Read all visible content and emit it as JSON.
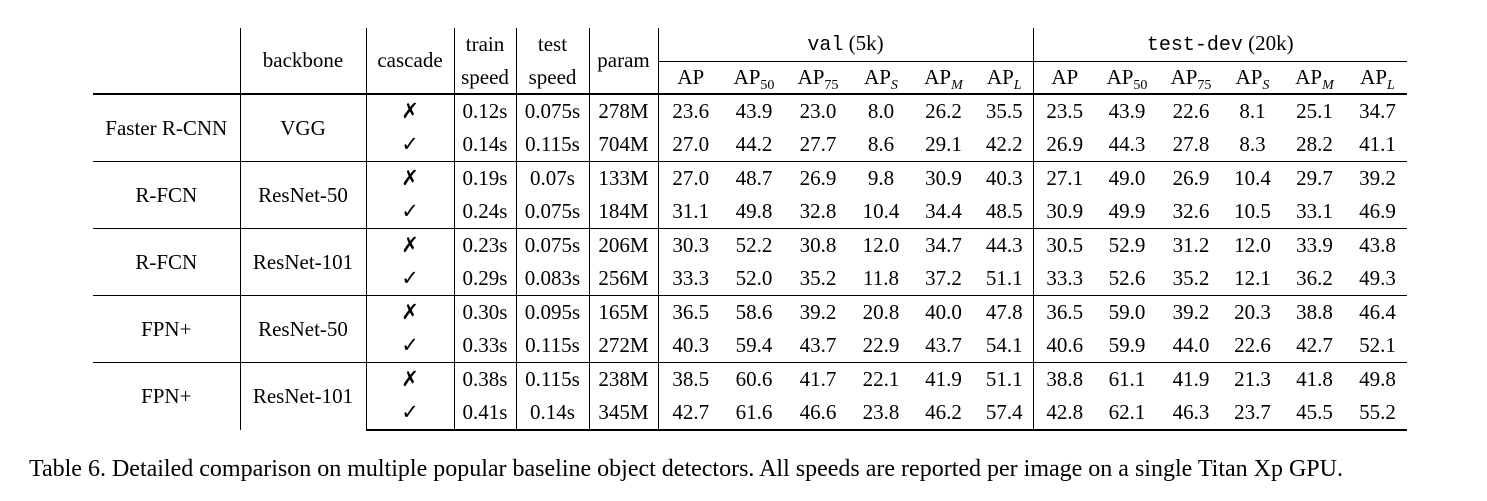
{
  "table": {
    "headers": {
      "backbone": "backbone",
      "cascade": "cascade",
      "train1": "train",
      "train2": "speed",
      "test1": "test",
      "test2": "speed",
      "param": "param",
      "val_label": "val",
      "val_count": "(5k)",
      "testdev_label": "test-dev",
      "testdev_count": "(20k)",
      "ap": "AP",
      "ap_prefix": "AP",
      "sub50": "50",
      "sub75": "75",
      "subS": "S",
      "subM": "M",
      "subL": "L"
    },
    "groups": [
      {
        "detector": "Faster R-CNN",
        "backbone": "VGG",
        "rows": [
          {
            "cascade": "✗",
            "train": "0.12s",
            "test": "0.075s",
            "param": "278M",
            "val": [
              "23.6",
              "43.9",
              "23.0",
              "8.0",
              "26.2",
              "35.5"
            ],
            "testdev": [
              "23.5",
              "43.9",
              "22.6",
              "8.1",
              "25.1",
              "34.7"
            ]
          },
          {
            "cascade": "✓",
            "train": "0.14s",
            "test": "0.115s",
            "param": "704M",
            "val": [
              "27.0",
              "44.2",
              "27.7",
              "8.6",
              "29.1",
              "42.2"
            ],
            "testdev": [
              "26.9",
              "44.3",
              "27.8",
              "8.3",
              "28.2",
              "41.1"
            ]
          }
        ]
      },
      {
        "detector": "R-FCN",
        "backbone": "ResNet-50",
        "rows": [
          {
            "cascade": "✗",
            "train": "0.19s",
            "test": "0.07s",
            "param": "133M",
            "val": [
              "27.0",
              "48.7",
              "26.9",
              "9.8",
              "30.9",
              "40.3"
            ],
            "testdev": [
              "27.1",
              "49.0",
              "26.9",
              "10.4",
              "29.7",
              "39.2"
            ]
          },
          {
            "cascade": "✓",
            "train": "0.24s",
            "test": "0.075s",
            "param": "184M",
            "val": [
              "31.1",
              "49.8",
              "32.8",
              "10.4",
              "34.4",
              "48.5"
            ],
            "testdev": [
              "30.9",
              "49.9",
              "32.6",
              "10.5",
              "33.1",
              "46.9"
            ]
          }
        ]
      },
      {
        "detector": "R-FCN",
        "backbone": "ResNet-101",
        "rows": [
          {
            "cascade": "✗",
            "train": "0.23s",
            "test": "0.075s",
            "param": "206M",
            "val": [
              "30.3",
              "52.2",
              "30.8",
              "12.0",
              "34.7",
              "44.3"
            ],
            "testdev": [
              "30.5",
              "52.9",
              "31.2",
              "12.0",
              "33.9",
              "43.8"
            ]
          },
          {
            "cascade": "✓",
            "train": "0.29s",
            "test": "0.083s",
            "param": "256M",
            "val": [
              "33.3",
              "52.0",
              "35.2",
              "11.8",
              "37.2",
              "51.1"
            ],
            "testdev": [
              "33.3",
              "52.6",
              "35.2",
              "12.1",
              "36.2",
              "49.3"
            ]
          }
        ]
      },
      {
        "detector": "FPN+",
        "backbone": "ResNet-50",
        "rows": [
          {
            "cascade": "✗",
            "train": "0.30s",
            "test": "0.095s",
            "param": "165M",
            "val": [
              "36.5",
              "58.6",
              "39.2",
              "20.8",
              "40.0",
              "47.8"
            ],
            "testdev": [
              "36.5",
              "59.0",
              "39.2",
              "20.3",
              "38.8",
              "46.4"
            ]
          },
          {
            "cascade": "✓",
            "train": "0.33s",
            "test": "0.115s",
            "param": "272M",
            "val": [
              "40.3",
              "59.4",
              "43.7",
              "22.9",
              "43.7",
              "54.1"
            ],
            "testdev": [
              "40.6",
              "59.9",
              "44.0",
              "22.6",
              "42.7",
              "52.1"
            ]
          }
        ]
      },
      {
        "detector": "FPN+",
        "backbone": "ResNet-101",
        "rows": [
          {
            "cascade": "✗",
            "train": "0.38s",
            "test": "0.115s",
            "param": "238M",
            "val": [
              "38.5",
              "60.6",
              "41.7",
              "22.1",
              "41.9",
              "51.1"
            ],
            "testdev": [
              "38.8",
              "61.1",
              "41.9",
              "21.3",
              "41.8",
              "49.8"
            ]
          },
          {
            "cascade": "✓",
            "train": "0.41s",
            "test": "0.14s",
            "param": "345M",
            "val": [
              "42.7",
              "61.6",
              "46.6",
              "23.8",
              "46.2",
              "57.4"
            ],
            "testdev": [
              "42.8",
              "62.1",
              "46.3",
              "23.7",
              "45.5",
              "55.2"
            ]
          }
        ]
      }
    ]
  },
  "caption": "Table 6. Detailed comparison on multiple popular baseline object detectors. All speeds are reported per image on a single Titan Xp GPU."
}
